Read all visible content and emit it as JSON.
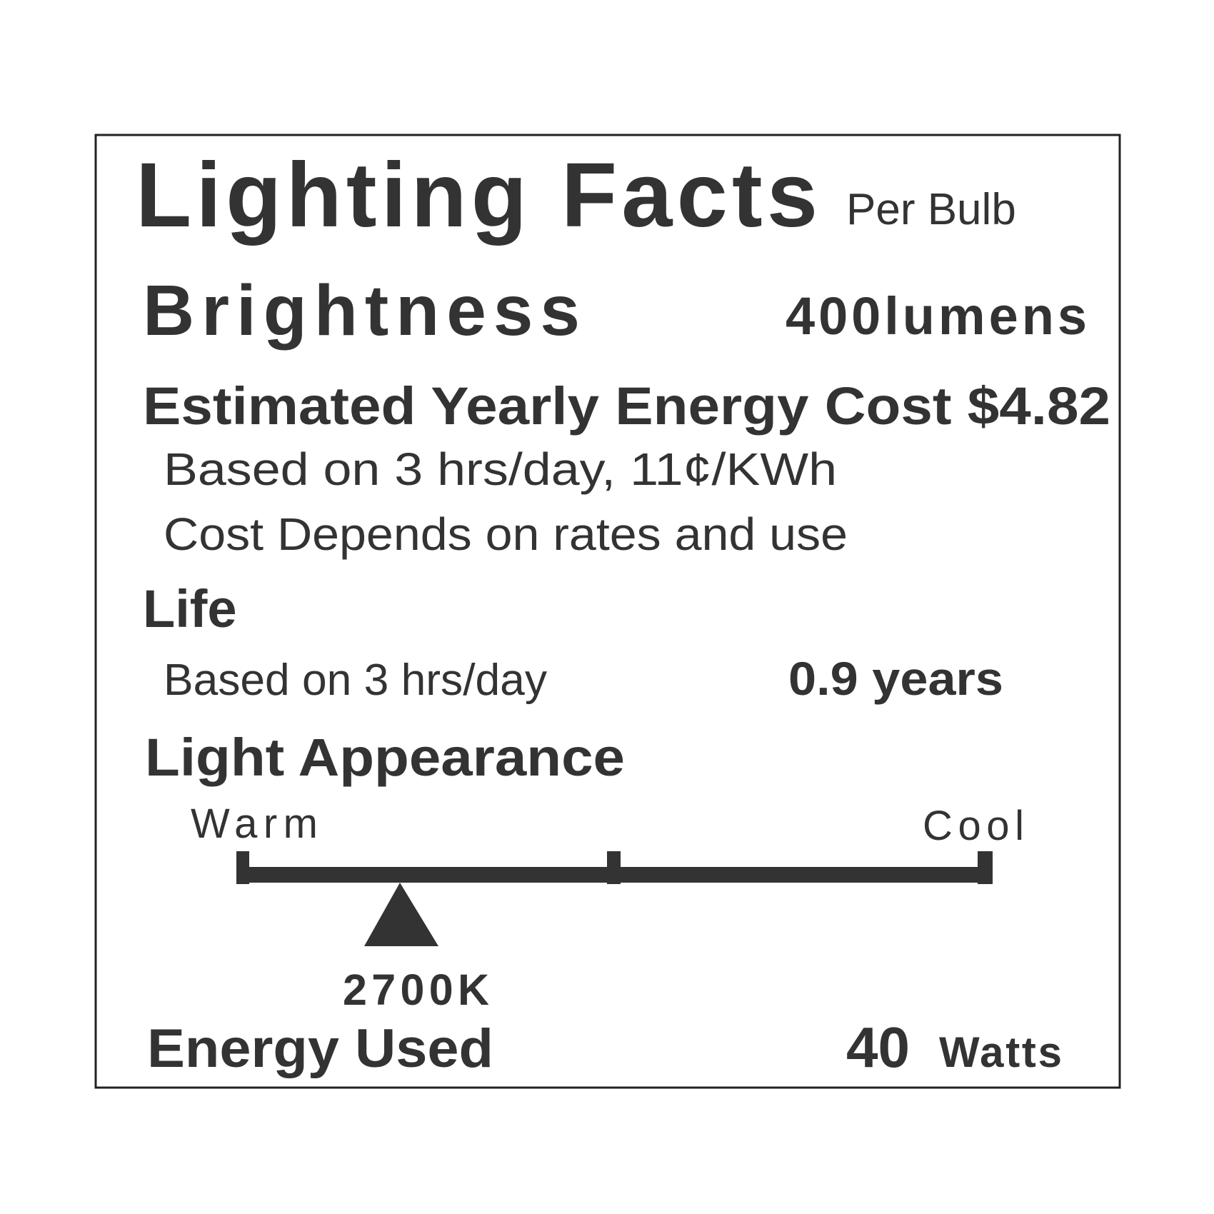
{
  "header": {
    "title": "Lighting Facts",
    "subtitle": "Per Bulb"
  },
  "brightness": {
    "label": "Brightness",
    "value": "400lumens"
  },
  "cost": {
    "label": "Estimated Yearly Energy Cost $4.82",
    "note1": "Based on 3 hrs/day, 11¢/KWh",
    "note2": "Cost Depends on rates and use"
  },
  "life": {
    "label": "Life",
    "note": "Based on 3 hrs/day",
    "value": "0.9 years"
  },
  "appearance": {
    "label": "Light Appearance",
    "warm": "Warm",
    "cool": "Cool",
    "value": "2700K"
  },
  "energy": {
    "label": "Energy Used",
    "value": "40",
    "unit": "Watts"
  }
}
